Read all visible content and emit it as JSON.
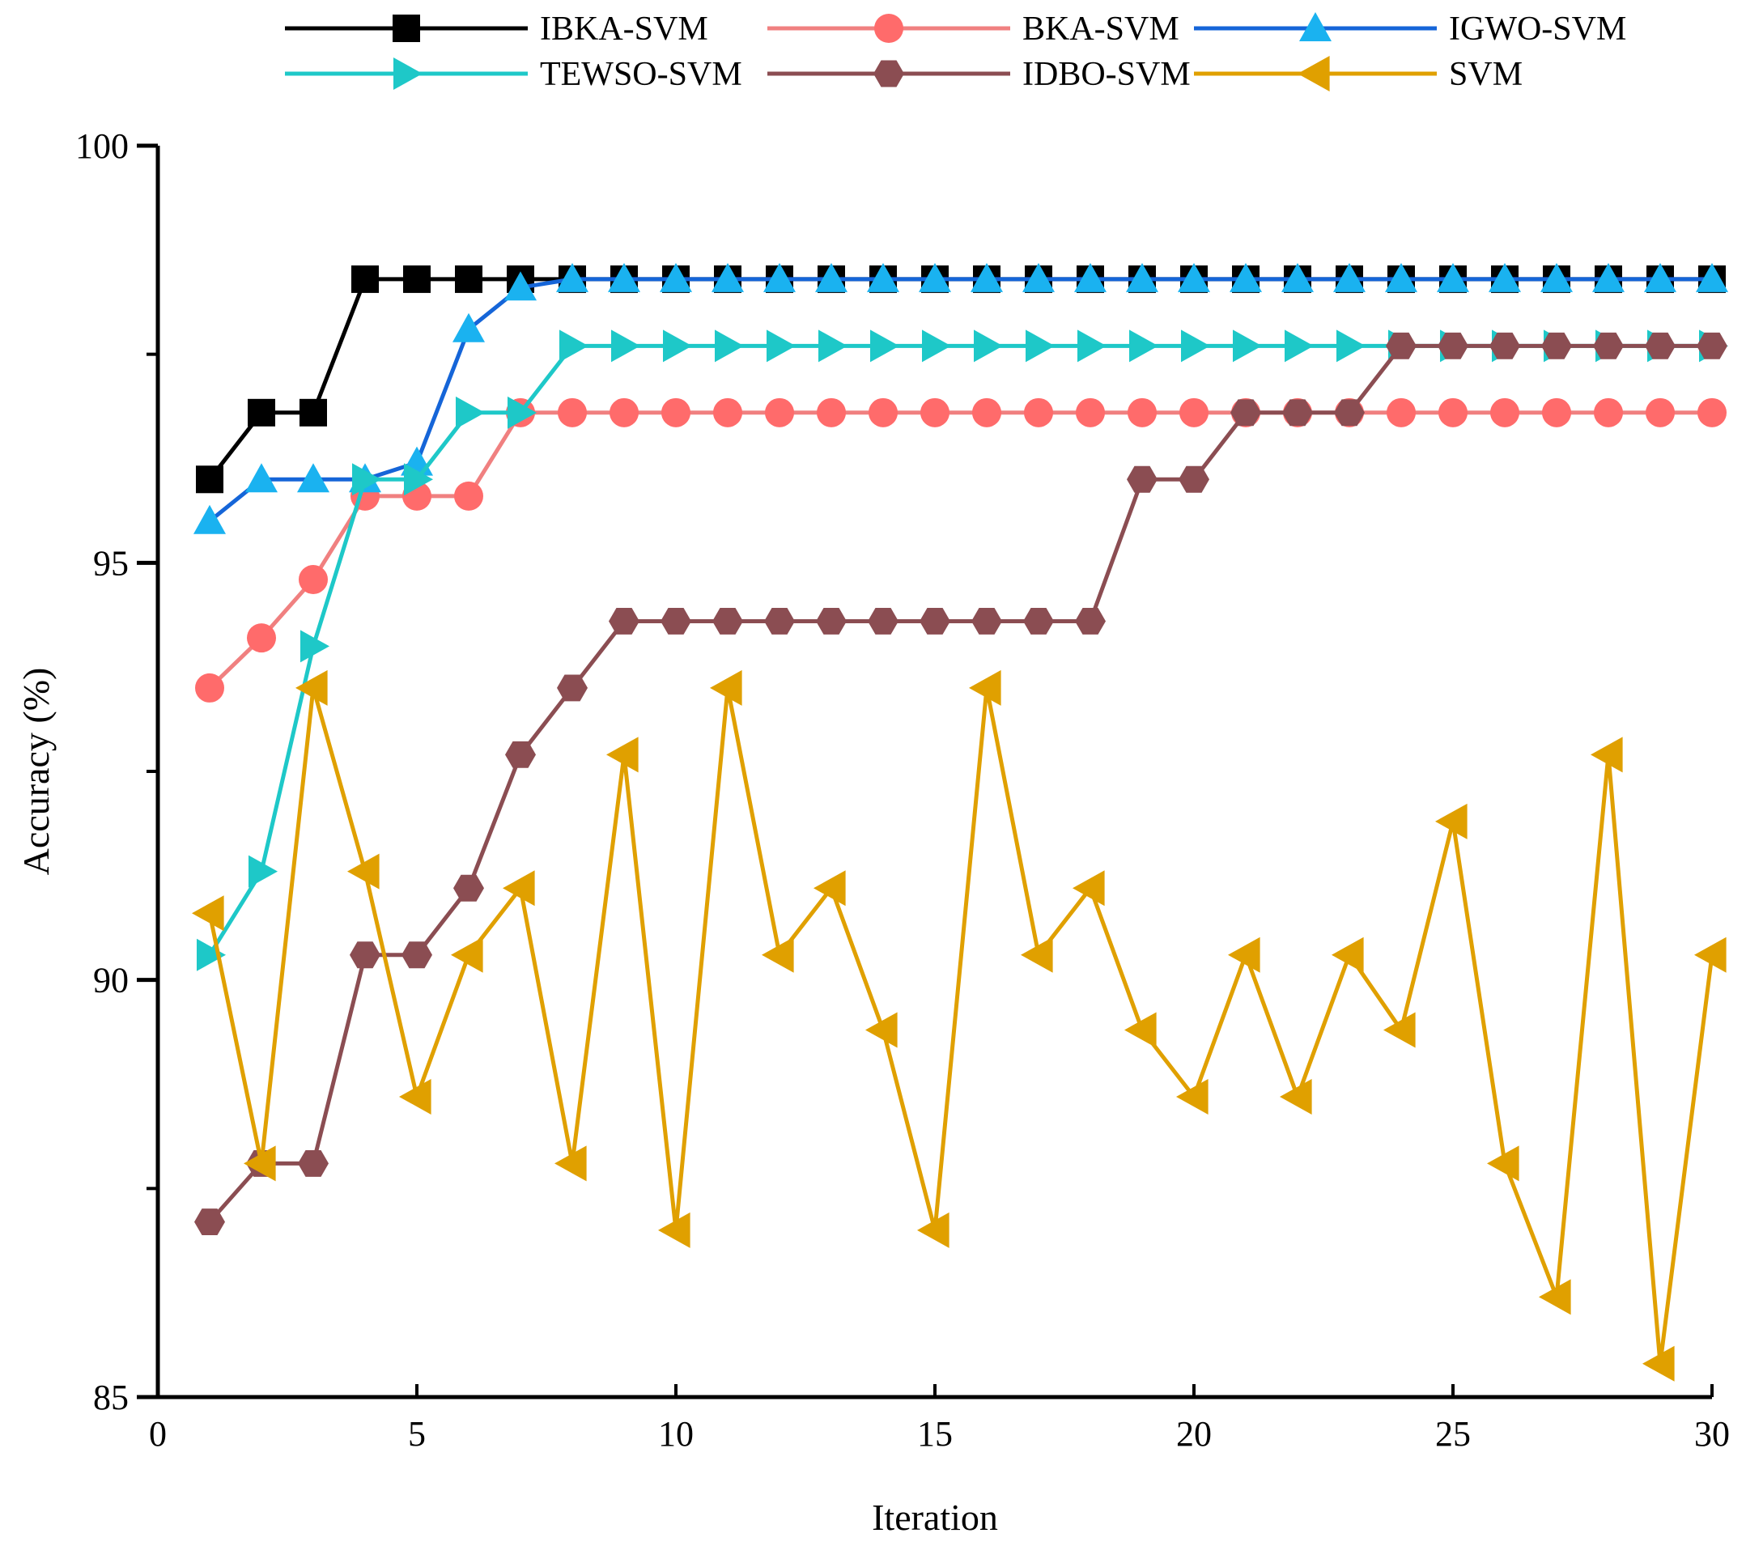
{
  "chart_data": {
    "type": "line",
    "title": "",
    "xlabel": "Iteration",
    "ylabel": "Accuracy (%)",
    "xlim": [
      0,
      30
    ],
    "ylim": [
      85,
      100
    ],
    "xticks": [
      0,
      5,
      10,
      15,
      20,
      25,
      30
    ],
    "yticks": [
      85,
      90,
      95,
      100
    ],
    "grid": false,
    "legend_position": "top",
    "x": [
      1,
      2,
      3,
      4,
      5,
      6,
      7,
      8,
      9,
      10,
      11,
      12,
      13,
      14,
      15,
      16,
      17,
      18,
      19,
      20,
      21,
      22,
      23,
      24,
      25,
      26,
      27,
      28,
      29,
      30
    ],
    "series": [
      {
        "name": "IBKA-SVM",
        "color": "#000000",
        "marker": "square",
        "values": [
          96.0,
          96.8,
          96.8,
          98.4,
          98.4,
          98.4,
          98.4,
          98.4,
          98.4,
          98.4,
          98.4,
          98.4,
          98.4,
          98.4,
          98.4,
          98.4,
          98.4,
          98.4,
          98.4,
          98.4,
          98.4,
          98.4,
          98.4,
          98.4,
          98.4,
          98.4,
          98.4,
          98.4,
          98.4,
          98.4
        ]
      },
      {
        "name": "BKA-SVM",
        "color": "#ff6b6b",
        "line_color": "#f08080",
        "marker": "circle",
        "values": [
          93.5,
          94.1,
          94.8,
          95.8,
          95.8,
          95.8,
          96.8,
          96.8,
          96.8,
          96.8,
          96.8,
          96.8,
          96.8,
          96.8,
          96.8,
          96.8,
          96.8,
          96.8,
          96.8,
          96.8,
          96.8,
          96.8,
          96.8,
          96.8,
          96.8,
          96.8,
          96.8,
          96.8,
          96.8,
          96.8
        ]
      },
      {
        "name": "IGWO-SVM",
        "color": "#1ab2f0",
        "line_color": "#1565d8",
        "marker": "triangle-up",
        "values": [
          95.5,
          96.0,
          96.0,
          96.0,
          96.2,
          97.8,
          98.3,
          98.4,
          98.4,
          98.4,
          98.4,
          98.4,
          98.4,
          98.4,
          98.4,
          98.4,
          98.4,
          98.4,
          98.4,
          98.4,
          98.4,
          98.4,
          98.4,
          98.4,
          98.4,
          98.4,
          98.4,
          98.4,
          98.4,
          98.4
        ]
      },
      {
        "name": "TEWSO-SVM",
        "color": "#1ec8c8",
        "marker": "triangle-right",
        "values": [
          90.3,
          91.3,
          94.0,
          96.0,
          96.0,
          96.8,
          96.8,
          97.6,
          97.6,
          97.6,
          97.6,
          97.6,
          97.6,
          97.6,
          97.6,
          97.6,
          97.6,
          97.6,
          97.6,
          97.6,
          97.6,
          97.6,
          97.6,
          97.6,
          97.6,
          97.6,
          97.6,
          97.6,
          97.6,
          97.6
        ]
      },
      {
        "name": "IDBO-SVM",
        "color": "#8b4d52",
        "marker": "hexagon",
        "values": [
          87.1,
          87.8,
          87.8,
          90.3,
          90.3,
          91.1,
          92.7,
          93.5,
          94.3,
          94.3,
          94.3,
          94.3,
          94.3,
          94.3,
          94.3,
          94.3,
          94.3,
          94.3,
          96.0,
          96.0,
          96.8,
          96.8,
          96.8,
          97.6,
          97.6,
          97.6,
          97.6,
          97.6,
          97.6,
          97.6
        ]
      },
      {
        "name": "SVM",
        "color": "#e0a000",
        "marker": "triangle-left",
        "values": [
          90.8,
          87.8,
          93.5,
          91.3,
          88.6,
          90.3,
          91.1,
          87.8,
          92.7,
          87.0,
          93.5,
          90.3,
          91.1,
          89.4,
          87.0,
          93.5,
          90.3,
          91.1,
          89.4,
          88.6,
          90.3,
          88.6,
          90.3,
          89.4,
          91.9,
          87.8,
          86.2,
          92.7,
          85.4,
          90.3
        ]
      }
    ]
  }
}
